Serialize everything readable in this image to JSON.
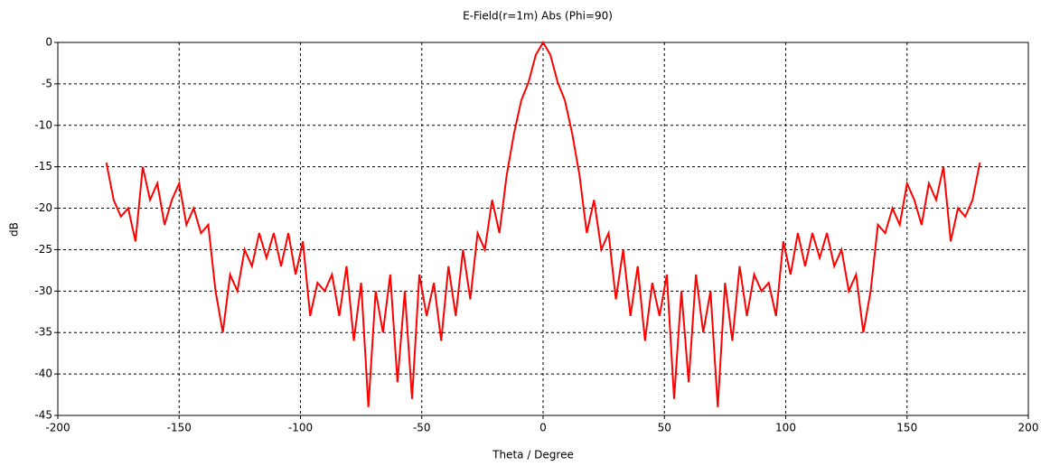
{
  "chart_data": {
    "type": "line",
    "title": "E-Field(r=1m) Abs (Phi=90)",
    "x_label": "Theta / Degree",
    "y_label": "dB",
    "x": [
      -180,
      -177,
      -174,
      -171,
      -168,
      -165,
      -162,
      -159,
      -156,
      -153,
      -150,
      -147,
      -144,
      -141,
      -138,
      -135,
      -132,
      -129,
      -126,
      -123,
      -120,
      -117,
      -114,
      -111,
      -108,
      -105,
      -102,
      -99,
      -96,
      -93,
      -90,
      -87,
      -84,
      -81,
      -78,
      -75,
      -72,
      -69,
      -66,
      -63,
      -60,
      -57,
      -54,
      -51,
      -48,
      -45,
      -42,
      -39,
      -36,
      -33,
      -30,
      -27,
      -24,
      -21,
      -18,
      -15,
      -12,
      -9,
      -6,
      -3,
      0,
      3,
      6,
      9,
      12,
      15,
      18,
      21,
      24,
      27,
      30,
      33,
      36,
      39,
      42,
      45,
      48,
      51,
      54,
      57,
      60,
      63,
      66,
      69,
      72,
      75,
      78,
      81,
      84,
      87,
      90,
      93,
      96,
      99,
      102,
      105,
      108,
      111,
      114,
      117,
      120,
      123,
      126,
      129,
      132,
      135,
      138,
      141,
      144,
      147,
      150,
      153,
      156,
      159,
      162,
      165,
      168,
      171,
      174,
      177,
      180
    ],
    "series": [
      {
        "name": "E-Field",
        "color": "#ff0000",
        "values": [
          -14.5,
          -19,
          -21,
          -20,
          -24,
          -15,
          -19,
          -17,
          -22,
          -19,
          -17,
          -22,
          -20,
          -23,
          -22,
          -30,
          -35,
          -28,
          -30,
          -25,
          -27,
          -23,
          -26,
          -23,
          -27,
          -23,
          -28,
          -24,
          -33,
          -29,
          -30,
          -28,
          -33,
          -27,
          -36,
          -29,
          -44,
          -30,
          -35,
          -28,
          -41,
          -30,
          -43,
          -28,
          -33,
          -29,
          -36,
          -27,
          -33,
          -25,
          -31,
          -23,
          -25,
          -19,
          -23,
          -16,
          -11,
          -7,
          -4.8,
          -1.5,
          0,
          -1.5,
          -4.8,
          -7,
          -11,
          -16,
          -23,
          -19,
          -25,
          -23,
          -31,
          -25,
          -33,
          -27,
          -36,
          -29,
          -33,
          -28,
          -43,
          -30,
          -41,
          -28,
          -35,
          -30,
          -44,
          -29,
          -36,
          -27,
          -33,
          -28,
          -30,
          -29,
          -33,
          -24,
          -28,
          -23,
          -27,
          -23,
          -26,
          -23,
          -27,
          -25,
          -30,
          -28,
          -35,
          -30,
          -22,
          -23,
          -20,
          -22,
          -17,
          -19,
          -22,
          -17,
          -19,
          -15,
          -24,
          -20,
          -21,
          -19,
          -14.5
        ]
      }
    ],
    "xlim": [
      -200,
      200
    ],
    "xticks": [
      -200,
      -150,
      -100,
      -50,
      0,
      50,
      100,
      150,
      200
    ],
    "ylim": [
      -45,
      0
    ],
    "yticks": [
      0,
      -5,
      -10,
      -15,
      -20,
      -25,
      -30,
      -35,
      -40,
      -45
    ],
    "grid": true
  }
}
